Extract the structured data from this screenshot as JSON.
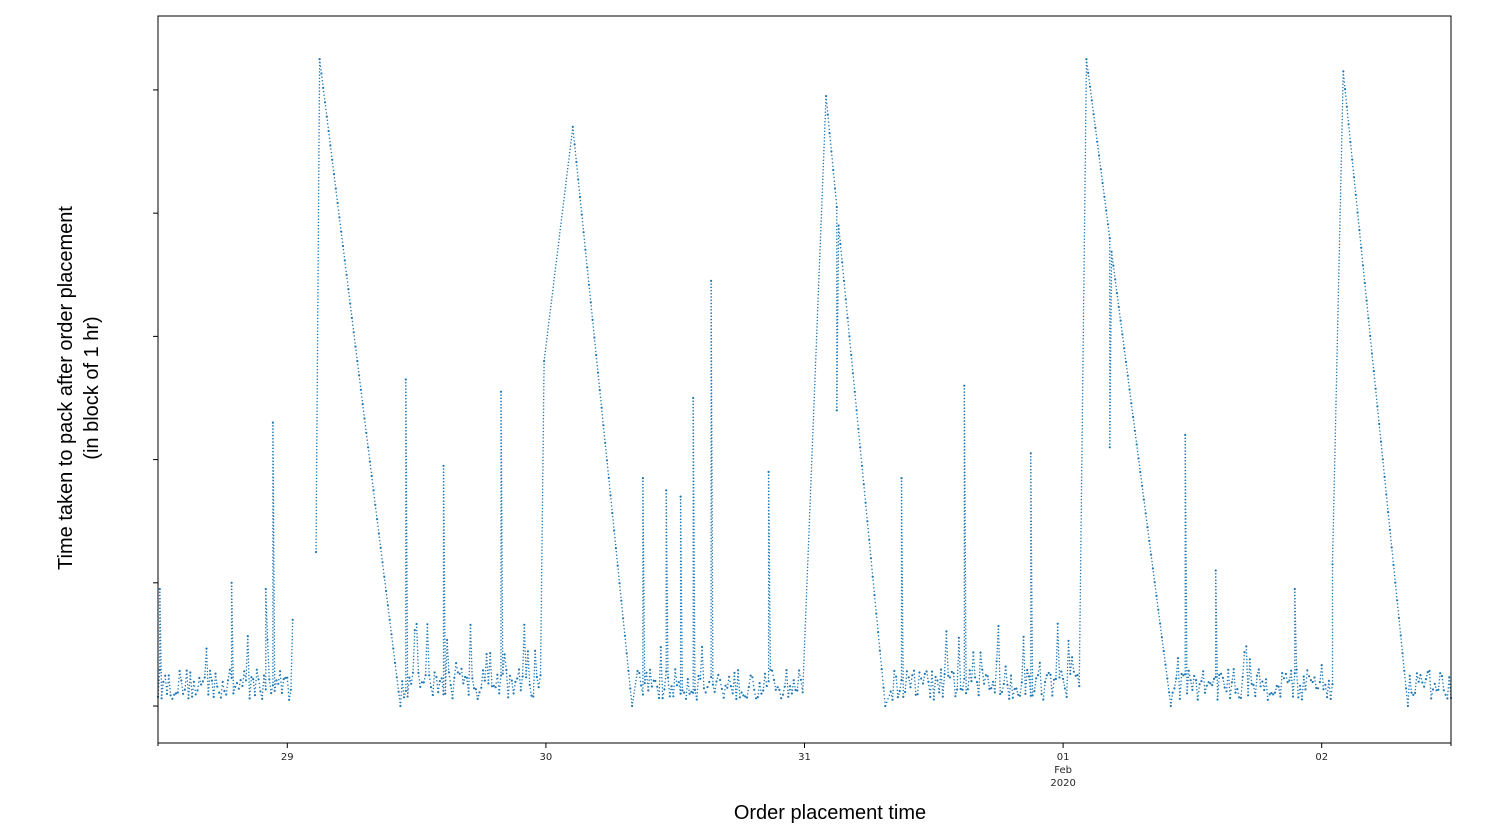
{
  "chart_data": {
    "type": "scatter",
    "style": "dotted-line",
    "title": "",
    "xlabel": "Order placement time",
    "ylabel_line1": "Time taken to pack after order placement",
    "ylabel_line2": "(in block of 1 hr)",
    "series_color": "#1f77b4",
    "grid": false,
    "legend": false,
    "y_tick_labels_visible": false,
    "x_range": [
      "2020-01-28 12:00",
      "2020-02-02 12:00"
    ],
    "ylim": [
      -0.3,
      5.6
    ],
    "x_ticks": [
      {
        "date": "2020-01-29",
        "label": "29"
      },
      {
        "date": "2020-01-30",
        "label": "30"
      },
      {
        "date": "2020-01-31",
        "label": "31"
      },
      {
        "date": "2020-02-01",
        "label": "01",
        "sublabel1": "Feb",
        "sublabel2": "2020"
      },
      {
        "date": "2020-02-02",
        "label": "02"
      }
    ],
    "y_ticks": [
      0,
      1,
      2,
      3,
      4,
      5
    ],
    "sawtooth_segments": [
      {
        "start": "2020-01-29 03:00",
        "peak": 5.25,
        "end": "2020-01-29 10:30"
      },
      {
        "start": "2020-01-30 02:30",
        "peak": 4.7,
        "end": "2020-01-30 08:00"
      },
      {
        "start": "2020-01-31 02:00",
        "peak": 4.95,
        "end": "2020-01-31 07:30"
      },
      {
        "start": "2020-02-01 02:10",
        "peak": 5.25,
        "end": "2020-02-01 10:00"
      },
      {
        "start": "2020-02-02 02:00",
        "peak": 5.15,
        "end": "2020-02-02 08:00"
      }
    ],
    "noise_intervals": [
      {
        "start": "2020-01-28 12:00",
        "end": "2020-01-29 00:30"
      },
      {
        "start": "2020-01-29 09:00",
        "end": "2020-01-29 23:30"
      },
      {
        "start": "2020-01-30 08:30",
        "end": "2020-01-30 23:59"
      },
      {
        "start": "2020-01-31 08:00",
        "end": "2020-02-01 01:30"
      },
      {
        "start": "2020-02-01 10:00",
        "end": "2020-02-02 01:00"
      },
      {
        "start": "2020-02-02 08:00",
        "end": "2020-02-02 12:00"
      }
    ],
    "spikes": [
      {
        "x": "2020-01-28 12:10",
        "y": 0.95
      },
      {
        "x": "2020-01-28 18:50",
        "y": 1.0
      },
      {
        "x": "2020-01-28 22:00",
        "y": 0.95
      },
      {
        "x": "2020-01-28 22:40",
        "y": 2.3
      },
      {
        "x": "2020-01-29 02:40",
        "y": 1.25
      },
      {
        "x": "2020-01-29 11:00",
        "y": 2.65
      },
      {
        "x": "2020-01-29 14:30",
        "y": 1.95
      },
      {
        "x": "2020-01-29 19:50",
        "y": 2.55
      },
      {
        "x": "2020-01-29 23:50",
        "y": 2.8
      },
      {
        "x": "2020-01-30 09:00",
        "y": 1.85
      },
      {
        "x": "2020-01-30 11:10",
        "y": 1.75
      },
      {
        "x": "2020-01-30 12:30",
        "y": 1.7
      },
      {
        "x": "2020-01-30 13:40",
        "y": 2.5
      },
      {
        "x": "2020-01-30 15:20",
        "y": 3.45
      },
      {
        "x": "2020-01-30 20:40",
        "y": 1.9
      },
      {
        "x": "2020-01-31 03:00",
        "y": 2.4
      },
      {
        "x": "2020-01-31 09:00",
        "y": 1.85
      },
      {
        "x": "2020-01-31 14:50",
        "y": 2.6
      },
      {
        "x": "2020-01-31 21:00",
        "y": 2.05
      },
      {
        "x": "2020-02-01 04:20",
        "y": 2.1
      },
      {
        "x": "2020-02-01 11:20",
        "y": 2.2
      },
      {
        "x": "2020-02-01 14:10",
        "y": 1.1
      },
      {
        "x": "2020-02-01 21:30",
        "y": 0.95
      },
      {
        "x": "2020-02-02 01:00",
        "y": 1.15
      }
    ]
  }
}
